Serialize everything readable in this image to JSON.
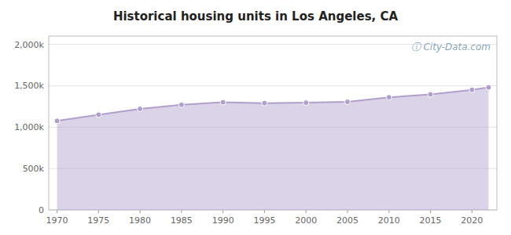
{
  "chart_data": {
    "type": "area",
    "title": "Historical housing units in Los Angeles, CA",
    "x": [
      1970,
      1975,
      1980,
      1985,
      1990,
      1995,
      2000,
      2005,
      2010,
      2015,
      2020,
      2022
    ],
    "values": [
      1075000,
      1150000,
      1220000,
      1270000,
      1300000,
      1290000,
      1295000,
      1305000,
      1360000,
      1395000,
      1450000,
      1480000
    ],
    "color": "#b09fcc",
    "marker": "circle",
    "xlim": [
      1969,
      2023
    ],
    "xticks": [
      1970,
      1975,
      1980,
      1985,
      1990,
      1995,
      2000,
      2005,
      2010,
      2015,
      2020
    ],
    "ylim": [
      0,
      2100000
    ],
    "yticks": [
      0,
      {
        "value": 500000,
        "label": "500k"
      },
      {
        "value": 1000000,
        "label": "1,000k"
      },
      {
        "value": 1500000,
        "label": "1,500k"
      },
      {
        "value": 2000000,
        "label": "2,000k"
      }
    ],
    "grid": true,
    "annotations": [
      "ⓘ City-Data.com"
    ]
  }
}
